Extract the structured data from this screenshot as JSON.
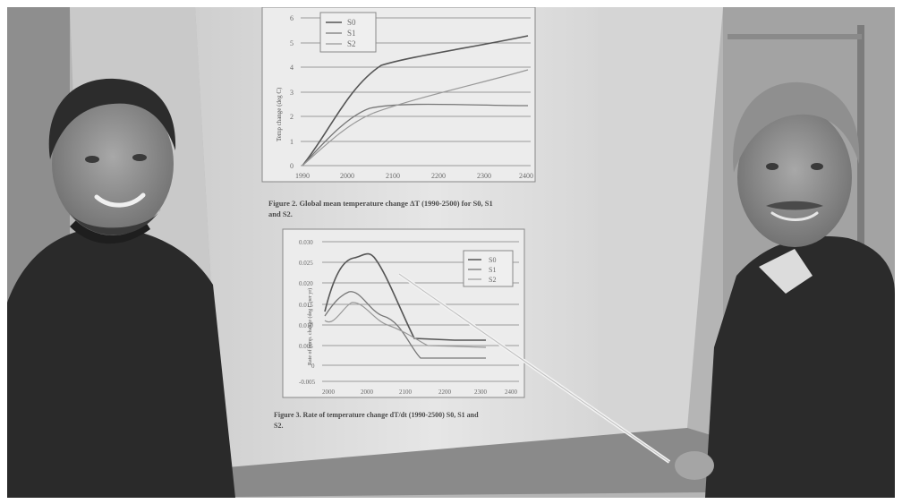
{
  "photo": {
    "description_tag": "two-people-pointing-at-projected-climate-figures"
  },
  "figure2": {
    "y_axis_label": "Temp change (deg C)",
    "y_ticks": [
      "0",
      "1",
      "2",
      "3",
      "4",
      "5",
      "6"
    ],
    "x_ticks": [
      "1990",
      "2000",
      "2100",
      "2200",
      "2300",
      "2400"
    ],
    "legend": [
      "S0",
      "S1",
      "S2"
    ],
    "caption_line1": "Figure 2. Global mean temperature change ΔT (1990-2500) for S0, S1",
    "caption_line2": "and S2."
  },
  "figure3": {
    "y_axis_label": "Rate of temp. change (deg C per yr)",
    "y_ticks": [
      "0.030",
      "0.025",
      "0.020",
      "0.015",
      "0.010",
      "0.005",
      "0",
      "-0.005"
    ],
    "x_ticks": [
      "1990",
      "2000",
      "2100",
      "2200",
      "2300",
      "2400"
    ],
    "legend": [
      "S0",
      "S1",
      "S2"
    ],
    "caption_line1": "Figure 3. Rate of temperature change dT/dt (1990-2500) S0, S1 and",
    "caption_line2": "S2."
  },
  "colors": {
    "wall": "#b9b9b9",
    "screen": "#dedede",
    "figure_bg": "#e9e9e9",
    "clothing": "#2b2b2b",
    "skin": "#8c8c8c"
  }
}
